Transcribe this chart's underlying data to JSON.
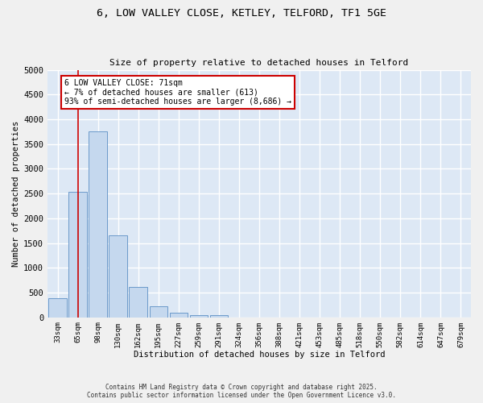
{
  "title_line1": "6, LOW VALLEY CLOSE, KETLEY, TELFORD, TF1 5GE",
  "title_line2": "Size of property relative to detached houses in Telford",
  "xlabel": "Distribution of detached houses by size in Telford",
  "ylabel": "Number of detached properties",
  "bar_values": [
    380,
    2530,
    3750,
    1650,
    620,
    230,
    100,
    50,
    50,
    0,
    0,
    0,
    0,
    0,
    0,
    0,
    0,
    0,
    0,
    0,
    0
  ],
  "categories": [
    "33sqm",
    "65sqm",
    "98sqm",
    "130sqm",
    "162sqm",
    "195sqm",
    "227sqm",
    "259sqm",
    "291sqm",
    "324sqm",
    "356sqm",
    "388sqm",
    "421sqm",
    "453sqm",
    "485sqm",
    "518sqm",
    "550sqm",
    "582sqm",
    "614sqm",
    "647sqm",
    "679sqm"
  ],
  "bar_color": "#c5d8ee",
  "bar_edge_color": "#5b8ec4",
  "vline_x": 1.0,
  "vline_color": "#cc0000",
  "annotation_text": "6 LOW VALLEY CLOSE: 71sqm\n← 7% of detached houses are smaller (613)\n93% of semi-detached houses are larger (8,686) →",
  "annotation_box_color": "#ffffff",
  "annotation_box_edge": "#cc0000",
  "ylim": [
    0,
    5000
  ],
  "yticks": [
    0,
    500,
    1000,
    1500,
    2000,
    2500,
    3000,
    3500,
    4000,
    4500,
    5000
  ],
  "background_color": "#dde8f5",
  "grid_color": "#ffffff",
  "fig_background": "#f0f0f0",
  "footer_line1": "Contains HM Land Registry data © Crown copyright and database right 2025.",
  "footer_line2": "Contains public sector information licensed under the Open Government Licence v3.0."
}
